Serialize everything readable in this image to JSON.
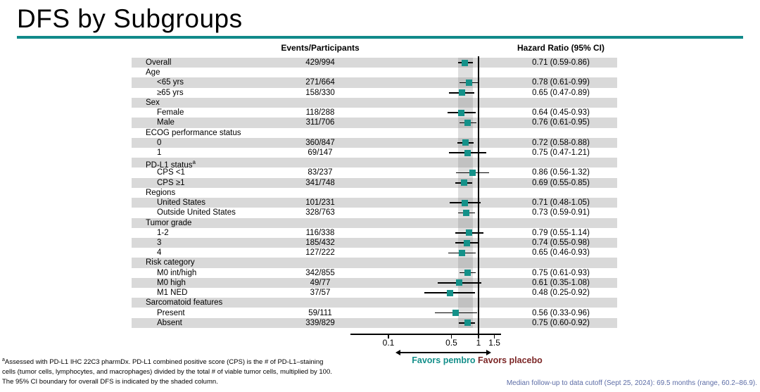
{
  "slide": {
    "title": "DFS by Subgroups"
  },
  "table": {
    "col_events_header": "Events/Participants",
    "col_hr_header": "Hazard Ratio (95% CI)"
  },
  "chart_data": {
    "type": "scatter",
    "subtype": "forest-plot",
    "x_scale": "log",
    "x_ticks": [
      0.1,
      0.5,
      1,
      1.5
    ],
    "x_tick_labels": [
      "0.1",
      "0.5",
      "1",
      "1.5"
    ],
    "reference_line_x": 1,
    "shaded_band": {
      "lo": 0.59,
      "hi": 0.86,
      "meaning": "95% CI boundary for overall DFS"
    },
    "rows": [
      {
        "label": "Overall",
        "indent": false,
        "header": false,
        "events": "429/994",
        "hr_text": "0.71 (0.59-0.86)",
        "hr": 0.71,
        "lo": 0.59,
        "hi": 0.86,
        "shaded": true
      },
      {
        "label": "Age",
        "header": true,
        "shaded": false
      },
      {
        "label": "<65 yrs",
        "indent": true,
        "header": false,
        "events": "271/664",
        "hr_text": "0.78 (0.61-0.99)",
        "hr": 0.78,
        "lo": 0.61,
        "hi": 0.99,
        "shaded": true
      },
      {
        "label": "≥65 yrs",
        "indent": true,
        "header": false,
        "events": "158/330",
        "hr_text": "0.65 (0.47-0.89)",
        "hr": 0.65,
        "lo": 0.47,
        "hi": 0.89,
        "shaded": false
      },
      {
        "label": "Sex",
        "header": true,
        "shaded": true
      },
      {
        "label": "Female",
        "indent": true,
        "header": false,
        "events": "118/288",
        "hr_text": "0.64 (0.45-0.93)",
        "hr": 0.64,
        "lo": 0.45,
        "hi": 0.93,
        "shaded": false
      },
      {
        "label": "Male",
        "indent": true,
        "header": false,
        "events": "311/706",
        "hr_text": "0.76 (0.61-0.95)",
        "hr": 0.76,
        "lo": 0.61,
        "hi": 0.95,
        "shaded": true
      },
      {
        "label": "ECOG performance status",
        "header": true,
        "shaded": false
      },
      {
        "label": "0",
        "indent": true,
        "header": false,
        "events": "360/847",
        "hr_text": "0.72 (0.58-0.88)",
        "hr": 0.72,
        "lo": 0.58,
        "hi": 0.88,
        "shaded": true
      },
      {
        "label": "1",
        "indent": true,
        "header": false,
        "events": "69/147",
        "hr_text": "0.75 (0.47-1.21)",
        "hr": 0.75,
        "lo": 0.47,
        "hi": 1.21,
        "shaded": false
      },
      {
        "label": "PD-L1 status",
        "sup": "a",
        "header": true,
        "shaded": true
      },
      {
        "label": "CPS <1",
        "indent": true,
        "header": false,
        "events": "83/237",
        "hr_text": "0.86 (0.56-1.32)",
        "hr": 0.86,
        "lo": 0.56,
        "hi": 1.32,
        "shaded": false
      },
      {
        "label": "CPS ≥1",
        "indent": true,
        "header": false,
        "events": "341/748",
        "hr_text": "0.69 (0.55-0.85)",
        "hr": 0.69,
        "lo": 0.55,
        "hi": 0.85,
        "shaded": true
      },
      {
        "label": "Regions",
        "header": true,
        "shaded": false
      },
      {
        "label": "United States",
        "indent": true,
        "header": false,
        "events": "101/231",
        "hr_text": "0.71 (0.48-1.05)",
        "hr": 0.71,
        "lo": 0.48,
        "hi": 1.05,
        "shaded": true
      },
      {
        "label": "Outside United States",
        "indent": true,
        "header": false,
        "events": "328/763",
        "hr_text": "0.73 (0.59-0.91)",
        "hr": 0.73,
        "lo": 0.59,
        "hi": 0.91,
        "shaded": false
      },
      {
        "label": "Tumor grade",
        "header": true,
        "shaded": true
      },
      {
        "label": "1-2",
        "indent": true,
        "header": false,
        "events": "116/338",
        "hr_text": "0.79 (0.55-1.14)",
        "hr": 0.79,
        "lo": 0.55,
        "hi": 1.14,
        "shaded": false
      },
      {
        "label": "3",
        "indent": true,
        "header": false,
        "events": "185/432",
        "hr_text": "0.74 (0.55-0.98)",
        "hr": 0.74,
        "lo": 0.55,
        "hi": 0.98,
        "shaded": true
      },
      {
        "label": "4",
        "indent": true,
        "header": false,
        "events": "127/222",
        "hr_text": "0.65 (0.46-0.93)",
        "hr": 0.65,
        "lo": 0.46,
        "hi": 0.93,
        "shaded": false
      },
      {
        "label": "Risk category",
        "header": true,
        "shaded": true
      },
      {
        "label": "M0 int/high",
        "indent": true,
        "header": false,
        "events": "342/855",
        "hr_text": "0.75 (0.61-0.93)",
        "hr": 0.75,
        "lo": 0.61,
        "hi": 0.93,
        "shaded": false
      },
      {
        "label": "M0 high",
        "indent": true,
        "header": false,
        "events": "49/77",
        "hr_text": "0.61 (0.35-1.08)",
        "hr": 0.61,
        "lo": 0.35,
        "hi": 1.08,
        "shaded": true
      },
      {
        "label": "M1 NED",
        "indent": true,
        "header": false,
        "events": "37/57",
        "hr_text": "0.48 (0.25-0.92)",
        "hr": 0.48,
        "lo": 0.25,
        "hi": 0.92,
        "shaded": false
      },
      {
        "label": "Sarcomatoid features",
        "header": true,
        "shaded": true
      },
      {
        "label": "Present",
        "indent": true,
        "header": false,
        "events": "59/111",
        "hr_text": "0.56 (0.33-0.96)",
        "hr": 0.56,
        "lo": 0.33,
        "hi": 0.96,
        "shaded": false
      },
      {
        "label": "Absent",
        "indent": true,
        "header": false,
        "events": "339/829",
        "hr_text": "0.75 (0.60-0.92)",
        "hr": 0.75,
        "lo": 0.6,
        "hi": 0.92,
        "shaded": true
      }
    ],
    "favors_left": "Favors pembro",
    "favors_right": "Favors placebo"
  },
  "footnotes": {
    "sup": "a",
    "line1": "Assessed with PD-L1 IHC 22C3 pharmDx. PD-L1 combined positive score (CPS) is the # of PD-L1–staining",
    "line2": "cells (tumor cells, lymphocytes, and macrophages) divided by the total # of viable tumor cells, multiplied by 100.",
    "line3": "The 95% CI boundary for overall DFS is indicated by the shaded column."
  },
  "statusbar": {
    "median_followup": "Median follow-up to data cutoff (Sept 25, 2024): 69.5 months (range, 60.2–86.9)."
  },
  "colors": {
    "teal_accent": "#118a8a",
    "marker_teal": "#149189",
    "favors_pembro_teal": "#148f8a",
    "favors_placebo_maroon": "#7c2626",
    "band_gray": "#d9d9d9",
    "followup_blue": "#5d6da6"
  }
}
